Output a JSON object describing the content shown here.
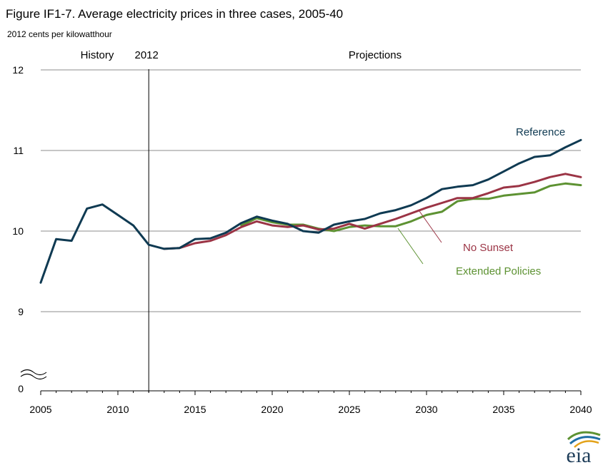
{
  "chart_data": {
    "type": "line",
    "title": "Figure IF1-7. Average electricity prices in three cases, 2005-40",
    "ylabel": "2012 cents per kilowatthour",
    "xlim": [
      2005,
      2040
    ],
    "y_axis_break": {
      "baseline_label": "0",
      "break_between": [
        0,
        9
      ]
    },
    "ylim_shown": [
      9,
      12
    ],
    "x_ticks": [
      "2005",
      "2010",
      "2015",
      "2020",
      "2025",
      "2030",
      "2035",
      "2040"
    ],
    "y_ticks": [
      {
        "value": 12,
        "label": "12"
      },
      {
        "value": 11,
        "label": "11"
      },
      {
        "value": 10,
        "label": "10"
      },
      {
        "value": 9,
        "label": "9"
      }
    ],
    "grid": true,
    "divider": {
      "year": 2012,
      "label": "2012"
    },
    "history_label": "History",
    "projections_label": "Projections",
    "series": [
      {
        "name": "Reference",
        "color": "#0f3a52",
        "x": [
          2005,
          2006,
          2007,
          2008,
          2009,
          2010,
          2011,
          2012,
          2013,
          2014,
          2015,
          2016,
          2017,
          2018,
          2019,
          2020,
          2021,
          2022,
          2023,
          2024,
          2025,
          2026,
          2027,
          2028,
          2029,
          2030,
          2031,
          2032,
          2033,
          2034,
          2035,
          2036,
          2037,
          2038,
          2039,
          2040
        ],
        "y": [
          9.36,
          9.9,
          9.88,
          10.28,
          10.33,
          10.2,
          10.07,
          9.83,
          9.78,
          9.79,
          9.9,
          9.91,
          9.98,
          10.1,
          10.18,
          10.13,
          10.09,
          10.0,
          9.98,
          10.08,
          10.12,
          10.15,
          10.22,
          10.26,
          10.32,
          10.41,
          10.52,
          10.55,
          10.57,
          10.64,
          10.74,
          10.84,
          10.92,
          10.94,
          11.04,
          11.13
        ]
      },
      {
        "name": "No Sunset",
        "color": "#9b3445",
        "x": [
          2013,
          2014,
          2015,
          2016,
          2017,
          2018,
          2019,
          2020,
          2021,
          2022,
          2023,
          2024,
          2025,
          2026,
          2027,
          2028,
          2029,
          2030,
          2031,
          2032,
          2033,
          2034,
          2035,
          2036,
          2037,
          2038,
          2039,
          2040
        ],
        "y": [
          9.78,
          9.79,
          9.85,
          9.88,
          9.95,
          10.05,
          10.12,
          10.07,
          10.05,
          10.07,
          10.02,
          10.03,
          10.09,
          10.03,
          10.09,
          10.15,
          10.22,
          10.29,
          10.35,
          10.41,
          10.41,
          10.47,
          10.54,
          10.56,
          10.61,
          10.67,
          10.71,
          10.67
        ]
      },
      {
        "name": "Extended Policies",
        "color": "#5d9232",
        "x": [
          2018,
          2019,
          2020,
          2021,
          2022,
          2023,
          2024,
          2025,
          2026,
          2027,
          2028,
          2029,
          2030,
          2031,
          2032,
          2033,
          2034,
          2035,
          2036,
          2037,
          2038,
          2039,
          2040
        ],
        "y": [
          10.07,
          10.16,
          10.11,
          10.08,
          10.08,
          10.03,
          10.0,
          10.05,
          10.07,
          10.06,
          10.06,
          10.12,
          10.2,
          10.24,
          10.37,
          10.4,
          10.4,
          10.44,
          10.46,
          10.48,
          10.56,
          10.59,
          10.57
        ]
      }
    ],
    "annotations": [
      {
        "series": "Reference",
        "label": "Reference"
      },
      {
        "series": "No Sunset",
        "label": "No Sunset"
      },
      {
        "series": "Extended Policies",
        "label": "Extended Policies"
      }
    ]
  },
  "logo": {
    "text": "eia"
  }
}
